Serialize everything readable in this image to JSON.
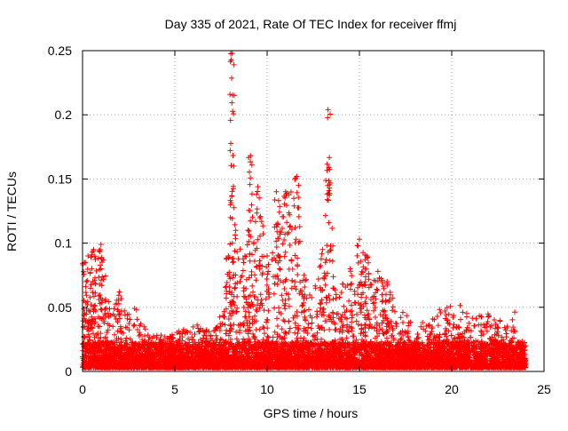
{
  "chart_data": {
    "type": "scatter",
    "title": "Day 335 of 2021, Rate Of TEC Index for receiver ffmj",
    "xlabel": "GPS time / hours",
    "ylabel": "ROTI / TECUs",
    "xlim": [
      0,
      25
    ],
    "ylim": [
      0,
      0.25
    ],
    "grid": true,
    "marker": "+",
    "color": "#ff0000",
    "x_ticks": [
      "0",
      "5",
      "10",
      "15",
      "20",
      "25"
    ],
    "x_tick_values": [
      0,
      5,
      10,
      15,
      20,
      25
    ],
    "y_ticks": [
      "0",
      "0.05",
      "0.1",
      "0.15",
      "0.2",
      "0.25"
    ],
    "y_tick_values": [
      0,
      0.05,
      0.1,
      0.15,
      0.2,
      0.25
    ],
    "data_range_hours": [
      0,
      24
    ],
    "baseline_band": [
      0.0,
      0.02
    ],
    "envelope": [
      {
        "x": 0.1,
        "y": 0.085
      },
      {
        "x": 0.3,
        "y": 0.09
      },
      {
        "x": 0.6,
        "y": 0.095
      },
      {
        "x": 1.0,
        "y": 0.099
      },
      {
        "x": 1.5,
        "y": 0.05
      },
      {
        "x": 2.0,
        "y": 0.062
      },
      {
        "x": 2.5,
        "y": 0.048
      },
      {
        "x": 3.0,
        "y": 0.05
      },
      {
        "x": 3.5,
        "y": 0.03
      },
      {
        "x": 4.0,
        "y": 0.028
      },
      {
        "x": 5.0,
        "y": 0.03
      },
      {
        "x": 5.5,
        "y": 0.035
      },
      {
        "x": 6.0,
        "y": 0.035
      },
      {
        "x": 6.5,
        "y": 0.038
      },
      {
        "x": 7.0,
        "y": 0.03
      },
      {
        "x": 7.5,
        "y": 0.045
      },
      {
        "x": 7.9,
        "y": 0.09
      },
      {
        "x": 8.1,
        "y": 0.248
      },
      {
        "x": 8.3,
        "y": 0.11
      },
      {
        "x": 8.8,
        "y": 0.09
      },
      {
        "x": 9.1,
        "y": 0.168
      },
      {
        "x": 9.5,
        "y": 0.144
      },
      {
        "x": 10.0,
        "y": 0.09
      },
      {
        "x": 10.5,
        "y": 0.14
      },
      {
        "x": 11.0,
        "y": 0.14
      },
      {
        "x": 11.6,
        "y": 0.152
      },
      {
        "x": 12.0,
        "y": 0.075
      },
      {
        "x": 12.5,
        "y": 0.06
      },
      {
        "x": 13.0,
        "y": 0.095
      },
      {
        "x": 13.3,
        "y": 0.204
      },
      {
        "x": 13.7,
        "y": 0.06
      },
      {
        "x": 14.5,
        "y": 0.08
      },
      {
        "x": 15.0,
        "y": 0.103
      },
      {
        "x": 15.4,
        "y": 0.09
      },
      {
        "x": 16.0,
        "y": 0.078
      },
      {
        "x": 16.5,
        "y": 0.07
      },
      {
        "x": 17.0,
        "y": 0.05
      },
      {
        "x": 17.5,
        "y": 0.045
      },
      {
        "x": 18.0,
        "y": 0.035
      },
      {
        "x": 18.5,
        "y": 0.04
      },
      {
        "x": 19.5,
        "y": 0.05
      },
      {
        "x": 20.5,
        "y": 0.052
      },
      {
        "x": 21.0,
        "y": 0.045
      },
      {
        "x": 22.0,
        "y": 0.048
      },
      {
        "x": 22.5,
        "y": 0.045
      },
      {
        "x": 23.0,
        "y": 0.035
      },
      {
        "x": 23.3,
        "y": 0.053
      },
      {
        "x": 23.7,
        "y": 0.03
      },
      {
        "x": 24.0,
        "y": 0.025
      }
    ]
  }
}
